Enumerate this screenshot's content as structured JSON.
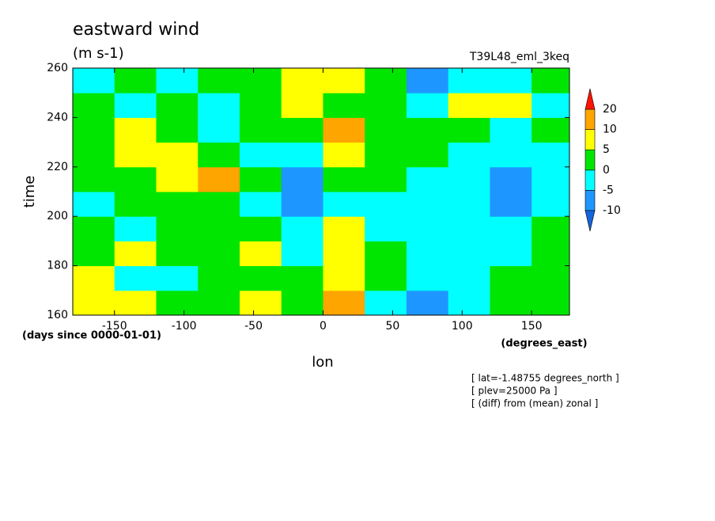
{
  "chart_data": {
    "type": "contour",
    "title": "eastward wind",
    "subtitle": "(m s-1)",
    "run_label": "T39L48_eml_3keq",
    "x_label": "lon",
    "x_units": "(degrees_east)",
    "y_label": "time",
    "y_units": "(days since 0000-01-01)",
    "xlim": [
      -180,
      177.2
    ],
    "ylim": [
      160,
      260
    ],
    "xticks": [
      -150,
      -100,
      -50,
      0,
      50,
      100,
      150
    ],
    "yticks": [
      160,
      180,
      200,
      220,
      240,
      260
    ],
    "x": [
      -180,
      -150,
      -120,
      -90,
      -60,
      -30,
      0,
      30,
      60,
      90,
      120,
      150,
      180
    ],
    "y": [
      160,
      170,
      180,
      190,
      200,
      210,
      220,
      230,
      240,
      250,
      260
    ],
    "values": [
      [
        7,
        7,
        2,
        2,
        7,
        2,
        12,
        -2,
        -7,
        -2,
        2,
        2
      ],
      [
        7,
        -2,
        -2,
        2,
        2,
        2,
        7,
        2,
        -2,
        -2,
        2,
        2
      ],
      [
        2,
        7,
        2,
        2,
        7,
        -2,
        7,
        2,
        -2,
        -2,
        -2,
        2
      ],
      [
        2,
        -2,
        2,
        2,
        2,
        -2,
        7,
        -2,
        -2,
        -2,
        -2,
        2
      ],
      [
        -2,
        2,
        2,
        2,
        -2,
        -7,
        -2,
        -2,
        -2,
        -2,
        -7,
        -2
      ],
      [
        2,
        2,
        7,
        12,
        2,
        -7,
        2,
        2,
        -2,
        -2,
        -7,
        -2
      ],
      [
        2,
        7,
        7,
        2,
        -2,
        -2,
        7,
        2,
        2,
        -2,
        -2,
        -2
      ],
      [
        2,
        7,
        2,
        -2,
        2,
        2,
        12,
        2,
        2,
        2,
        -2,
        2
      ],
      [
        2,
        -2,
        2,
        -2,
        2,
        7,
        2,
        2,
        -2,
        7,
        7,
        -2
      ],
      [
        -2,
        2,
        -2,
        2,
        2,
        7,
        7,
        2,
        -7,
        -2,
        -2,
        2
      ]
    ],
    "levels": [
      -10,
      -5,
      0,
      5,
      10,
      20
    ],
    "colors": [
      "#1464dc",
      "#1e96ff",
      "#00ffff",
      "#00e600",
      "#ffff00",
      "#ffa500",
      "#ff1400"
    ],
    "annotations": [
      "[ lat=-1.48755 degrees_north ]",
      "[ plev=25000 Pa ]",
      "[ (diff) from (mean) zonal ]"
    ]
  }
}
